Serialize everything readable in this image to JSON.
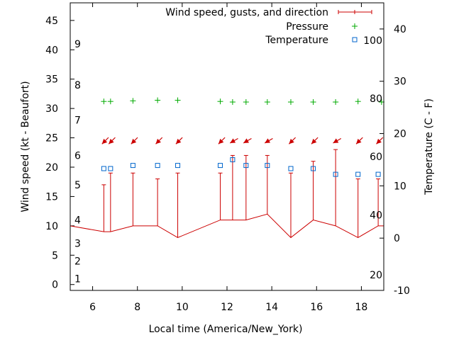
{
  "chart_data": {
    "type": "line",
    "xlabel": "Local time (America/New_York)",
    "ylabel": "Wind speed (kt - Beaufort)",
    "y2label": "Temperature (C - F)",
    "xlim": [
      5,
      19
    ],
    "ylim": [
      -1,
      48
    ],
    "y2lim": [
      -10,
      45
    ],
    "xticks": [
      "6",
      "8",
      "10",
      "12",
      "14",
      "16",
      "18"
    ],
    "yticks": [
      "0",
      "5",
      "10",
      "15",
      "20",
      "25",
      "30",
      "35",
      "40",
      "45"
    ],
    "y2ticks": [
      "-10",
      "0",
      "10",
      "20",
      "30",
      "40"
    ],
    "beaufort_labels": [
      {
        "label": "1",
        "y": 1
      },
      {
        "label": "2",
        "y": 4
      },
      {
        "label": "3",
        "y": 7
      },
      {
        "label": "4",
        "y": 11
      },
      {
        "label": "5",
        "y": 17
      },
      {
        "label": "6",
        "y": 22
      },
      {
        "label": "7",
        "y": 28
      },
      {
        "label": "8",
        "y": 34
      },
      {
        "label": "9",
        "y": 41
      }
    ],
    "fahrenheit_labels": [
      {
        "label": "20",
        "y2": -7
      },
      {
        "label": "40",
        "y2": 4.4
      },
      {
        "label": "60",
        "y2": 15.6
      },
      {
        "label": "80",
        "y2": 26.7
      },
      {
        "label": "100",
        "y2": 37.8
      }
    ],
    "legend_position": "top-right",
    "series": [
      {
        "name": "Wind speed, gusts, and direction",
        "color": "#cc0000",
        "x": [
          5.0,
          6.5,
          6.8,
          7.8,
          8.9,
          9.8,
          11.7,
          12.25,
          12.85,
          13.8,
          14.85,
          15.85,
          16.85,
          17.85,
          18.75,
          19.0
        ],
        "speed": [
          10,
          9,
          9,
          10,
          10,
          8,
          11,
          11,
          11,
          12,
          8,
          11,
          10,
          8,
          10,
          10
        ],
        "gust": [
          null,
          17,
          19,
          19,
          18,
          19,
          19,
          22,
          22,
          22,
          19,
          21,
          23,
          18,
          18,
          null
        ],
        "direction_deg": [
          null,
          45,
          45,
          45,
          45,
          45,
          45,
          60,
          60,
          60,
          45,
          45,
          60,
          45,
          45,
          null
        ]
      },
      {
        "name": "Pressure",
        "color": "#00aa00",
        "x": [
          6.5,
          6.8,
          7.8,
          8.9,
          9.8,
          11.7,
          12.25,
          12.85,
          13.8,
          14.85,
          15.85,
          16.85,
          17.85,
          18.9
        ],
        "y": [
          31.2,
          31.2,
          31.3,
          31.4,
          31.4,
          31.2,
          31.1,
          31.1,
          31.1,
          31.1,
          31.1,
          31.1,
          31.2,
          31.1
        ]
      },
      {
        "name": "Temperature",
        "color": "#0066cc",
        "x": [
          6.5,
          6.8,
          7.8,
          8.9,
          9.8,
          11.7,
          12.25,
          12.85,
          13.8,
          14.85,
          15.85,
          16.85,
          17.85,
          18.75
        ],
        "y2": [
          13.3,
          13.3,
          13.9,
          13.9,
          13.9,
          13.9,
          15.0,
          13.9,
          13.9,
          13.3,
          13.3,
          12.2,
          12.2,
          12.2
        ]
      }
    ]
  }
}
